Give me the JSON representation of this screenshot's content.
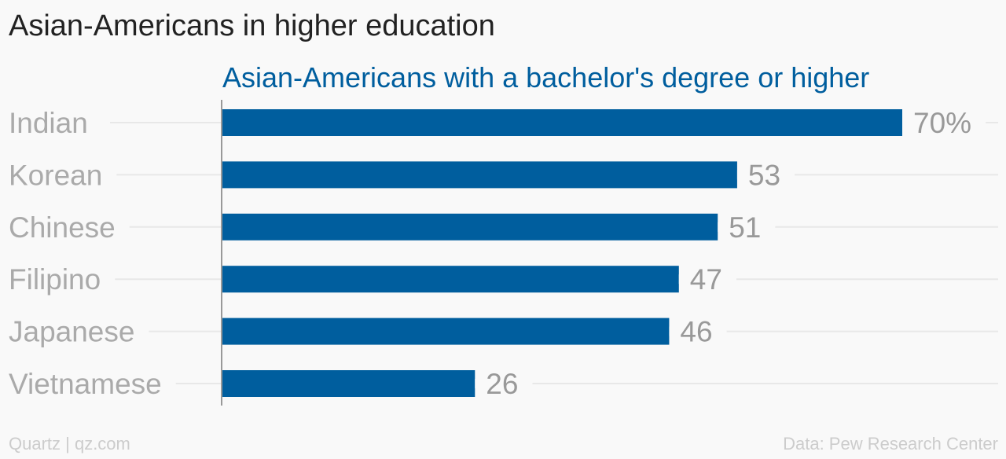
{
  "title": "Asian-Americans in higher education",
  "footer": {
    "left": "Quartz | qz.com",
    "right": "Data: Pew Research Center"
  },
  "colors": {
    "bar": "#005e9e",
    "series_label": "#005e9e",
    "category_label": "#aaaaaa",
    "value_label": "#999999",
    "gridline": "#e8e8e8",
    "axis_line": "#999999"
  },
  "chart_data": {
    "type": "bar",
    "orientation": "horizontal",
    "series": [
      {
        "name": "Asian-Americans with a bachelor's degree or higher",
        "values": [
          70,
          53,
          51,
          47,
          46,
          26
        ]
      }
    ],
    "categories": [
      "Indian",
      "Korean",
      "Chinese",
      "Filipino",
      "Japanese",
      "Vietnamese"
    ],
    "value_labels": [
      "70%",
      "53",
      "51",
      "47",
      "46",
      "26"
    ],
    "xlim": [
      0,
      70
    ],
    "grid": true
  }
}
